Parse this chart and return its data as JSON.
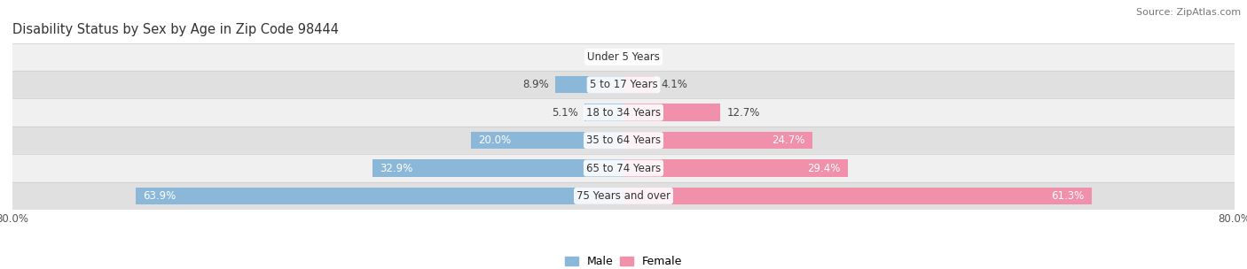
{
  "title": "Disability Status by Sex by Age in Zip Code 98444",
  "source": "Source: ZipAtlas.com",
  "categories": [
    "Under 5 Years",
    "5 to 17 Years",
    "18 to 34 Years",
    "35 to 64 Years",
    "65 to 74 Years",
    "75 Years and over"
  ],
  "male_values": [
    0.0,
    8.9,
    5.1,
    20.0,
    32.9,
    63.9
  ],
  "female_values": [
    0.0,
    4.1,
    12.7,
    24.7,
    29.4,
    61.3
  ],
  "male_color": "#8BB8D8",
  "female_color": "#F090AA",
  "row_bg_light": "#F0F0F0",
  "row_bg_dark": "#E0E0E0",
  "max_value": 80.0,
  "bar_height": 0.62,
  "title_fontsize": 10.5,
  "label_fontsize": 8.5,
  "cat_fontsize": 8.5,
  "tick_fontsize": 8.5,
  "source_fontsize": 8,
  "legend_fontsize": 9,
  "inside_label_threshold": 15
}
